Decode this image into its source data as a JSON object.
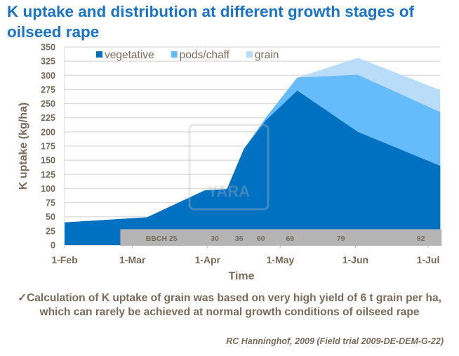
{
  "title": "K uptake and distribution at different growth stages of oilseed rape",
  "note": {
    "check_icon": "✓",
    "line1": "Calculation of K uptake of grain was based on very high yield of 6 t grain per ha,",
    "line2": "which can rarely be achieved at normal growth conditions of oilseed rape"
  },
  "source": "RC Hanninghof, 2009 (Field trial 2009-DE-DEM-G-22)",
  "watermark": "YARA",
  "chart_data": {
    "type": "area",
    "stacked": true,
    "xlabel": "Time",
    "ylabel": "K uptake (kg/ha)",
    "ylim": [
      0,
      350
    ],
    "yticks": [
      0,
      25,
      50,
      75,
      100,
      125,
      150,
      175,
      200,
      225,
      250,
      275,
      300,
      325,
      350
    ],
    "xticks": [
      {
        "date": "2009-02-01",
        "label": "1-Feb"
      },
      {
        "date": "2009-03-01",
        "label": "1-Mar"
      },
      {
        "date": "2009-04-01",
        "label": "1-Apr"
      },
      {
        "date": "2009-05-01",
        "label": "1-May"
      },
      {
        "date": "2009-06-01",
        "label": "1-Jun"
      },
      {
        "date": "2009-07-01",
        "label": "1-Jul"
      }
    ],
    "grid": true,
    "legend": "top",
    "x": [
      "2009-02-01",
      "2009-03-07",
      "2009-03-31",
      "2009-04-09",
      "2009-04-16",
      "2009-04-25",
      "2009-05-08",
      "2009-06-02",
      "2009-07-06"
    ],
    "series": [
      {
        "name": "vegetative",
        "color": "#0070c0",
        "values": [
          40,
          49,
          97,
          99,
          170,
          220,
          273,
          200,
          140
        ]
      },
      {
        "name": "pods/chaff",
        "color": "#66bbfb",
        "values": [
          0,
          0,
          0,
          0,
          0,
          5,
          23,
          101,
          95
        ]
      },
      {
        "name": "grain",
        "color": "#b9ddf9",
        "values": [
          0,
          0,
          0,
          0,
          0,
          0,
          0,
          30,
          39
        ]
      }
    ],
    "bbch": {
      "prefix": "BBCH",
      "start": "2009-02-24",
      "stages": [
        {
          "label": "25",
          "date": "2009-03-13"
        },
        {
          "label": "30",
          "date": "2009-04-04"
        },
        {
          "label": "35",
          "date": "2009-04-14"
        },
        {
          "label": "60",
          "date": "2009-04-23"
        },
        {
          "label": "69",
          "date": "2009-05-05"
        },
        {
          "label": "79",
          "date": "2009-05-26"
        },
        {
          "label": "92",
          "date": "2009-06-28"
        }
      ]
    }
  }
}
